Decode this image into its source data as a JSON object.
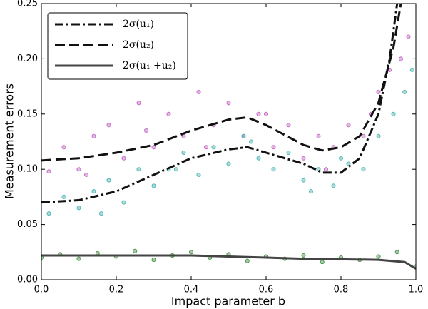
{
  "chart_data": {
    "type": "scatter",
    "x_label": "Impact parameter b",
    "y_label": "Measurement errors",
    "xlim": [
      0,
      1
    ],
    "ylim": [
      0,
      0.25
    ],
    "xticks": [
      {
        "value": 0,
        "label": "0.0"
      },
      {
        "value": 0.2,
        "label": "0.2"
      },
      {
        "value": 0.4,
        "label": "0.4"
      },
      {
        "value": 0.6,
        "label": "0.6"
      },
      {
        "value": 0.8,
        "label": "0.8"
      },
      {
        "value": 1,
        "label": "1.0"
      }
    ],
    "yticks": [
      {
        "value": 0,
        "label": "0.00"
      },
      {
        "value": 0.05,
        "label": "0.05"
      },
      {
        "value": 0.1,
        "label": "0.10"
      },
      {
        "value": 0.15,
        "label": "0.15"
      },
      {
        "value": 0.2,
        "label": "0.20"
      },
      {
        "value": 0.25,
        "label": "0.25"
      }
    ],
    "legend": "upper left",
    "series": [
      {
        "mode": "markers",
        "color": "#c060c0",
        "x": [
          0.02,
          0.06,
          0.1,
          0.14,
          0.18,
          0.22,
          0.26,
          0.3,
          0.34,
          0.38,
          0.42,
          0.46,
          0.5,
          0.54,
          0.58,
          0.62,
          0.66,
          0.7,
          0.74,
          0.78,
          0.82,
          0.86,
          0.9,
          0.93,
          0.96,
          0.98,
          0.12,
          0.28,
          0.44,
          0.6,
          0.76,
          0.88
        ],
        "y": [
          0.098,
          0.12,
          0.1,
          0.13,
          0.14,
          0.11,
          0.16,
          0.12,
          0.15,
          0.13,
          0.17,
          0.14,
          0.16,
          0.13,
          0.15,
          0.12,
          0.14,
          0.11,
          0.13,
          0.12,
          0.14,
          0.13,
          0.17,
          0.19,
          0.2,
          0.22,
          0.095,
          0.135,
          0.12,
          0.15,
          0.1,
          0.15
        ]
      },
      {
        "mode": "markers",
        "color": "#40b0b0",
        "x": [
          0.02,
          0.06,
          0.1,
          0.14,
          0.18,
          0.22,
          0.26,
          0.3,
          0.34,
          0.38,
          0.42,
          0.46,
          0.5,
          0.54,
          0.58,
          0.62,
          0.66,
          0.7,
          0.74,
          0.78,
          0.82,
          0.86,
          0.9,
          0.94,
          0.97,
          0.99,
          0.16,
          0.36,
          0.56,
          0.72,
          0.8
        ],
        "y": [
          0.06,
          0.075,
          0.065,
          0.08,
          0.09,
          0.07,
          0.1,
          0.085,
          0.1,
          0.115,
          0.095,
          0.12,
          0.105,
          0.13,
          0.11,
          0.1,
          0.115,
          0.09,
          0.1,
          0.085,
          0.105,
          0.1,
          0.13,
          0.15,
          0.17,
          0.19,
          0.06,
          0.1,
          0.125,
          0.08,
          0.11
        ]
      },
      {
        "mode": "markers",
        "color": "#3a8a3a",
        "x": [
          0,
          0.05,
          0.1,
          0.15,
          0.2,
          0.25,
          0.3,
          0.35,
          0.4,
          0.45,
          0.5,
          0.55,
          0.6,
          0.65,
          0.7,
          0.75,
          0.8,
          0.85,
          0.9,
          0.95,
          1
        ],
        "y": [
          0.02,
          0.023,
          0.019,
          0.024,
          0.021,
          0.026,
          0.018,
          0.022,
          0.025,
          0.02,
          0.023,
          0.017,
          0.021,
          0.019,
          0.022,
          0.016,
          0.02,
          0.018,
          0.021,
          0.025,
          0.012
        ]
      },
      {
        "mode": "line",
        "name": "2σ(u₁)",
        "color": "#111111",
        "dash": "dashdot",
        "x": [
          0,
          0.1,
          0.2,
          0.3,
          0.4,
          0.5,
          0.55,
          0.6,
          0.7,
          0.75,
          0.8,
          0.85,
          0.9,
          0.93,
          0.95
        ],
        "y": [
          0.07,
          0.072,
          0.08,
          0.095,
          0.11,
          0.118,
          0.12,
          0.115,
          0.105,
          0.097,
          0.097,
          0.11,
          0.15,
          0.2,
          0.25
        ]
      },
      {
        "mode": "line",
        "name": "2σ(u₂)",
        "color": "#111111",
        "dash": "dashed",
        "x": [
          0,
          0.1,
          0.2,
          0.3,
          0.4,
          0.5,
          0.55,
          0.6,
          0.7,
          0.75,
          0.8,
          0.85,
          0.9,
          0.94,
          0.96
        ],
        "y": [
          0.108,
          0.11,
          0.115,
          0.122,
          0.135,
          0.145,
          0.147,
          0.14,
          0.122,
          0.117,
          0.12,
          0.13,
          0.16,
          0.21,
          0.25
        ]
      },
      {
        "mode": "line",
        "name": "2σ(u₁ +u₂)",
        "color": "#444444",
        "dash": "solid",
        "x": [
          0,
          0.2,
          0.4,
          0.5,
          0.7,
          0.9,
          0.97,
          0.99,
          1
        ],
        "y": [
          0.022,
          0.022,
          0.022,
          0.021,
          0.019,
          0.018,
          0.016,
          0.012,
          0.01
        ]
      }
    ]
  }
}
